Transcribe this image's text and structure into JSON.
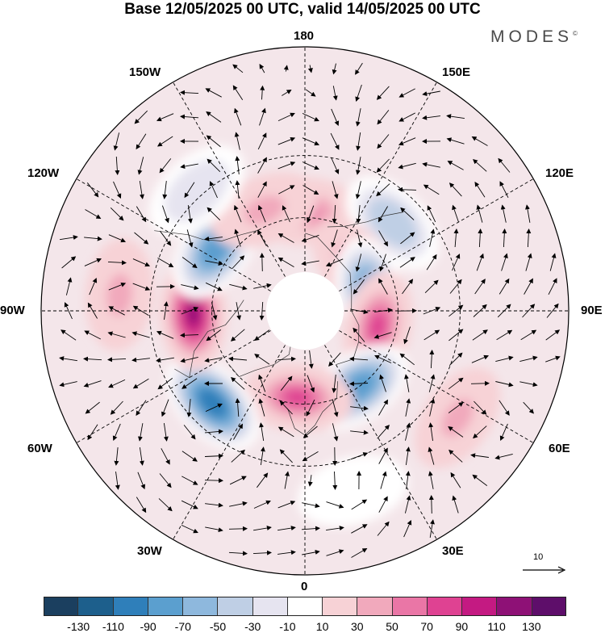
{
  "title": "Base 12/05/2025 00 UTC, valid 14/05/2025 00 UTC",
  "brand": "MODES",
  "brand_mark": "©",
  "longitude_labels": {
    "lon_180": "180",
    "lon_150w": "150W",
    "lon_150e": "150E",
    "lon_120w": "120W",
    "lon_120e": "120E",
    "lon_90w": "90W",
    "lon_90e": "90E",
    "lon_60w": "60W",
    "lon_60e": "60E",
    "lon_30w": "30W",
    "lon_30e": "30E",
    "lon_0": "0"
  },
  "reference_vector": "10",
  "colorbar": {
    "colors": [
      "#1b3f5f",
      "#1d5f8c",
      "#2f7fba",
      "#5b9fcf",
      "#8eb8dd",
      "#bfcfe5",
      "#e6e4f0",
      "#ffffff",
      "#f7d2d6",
      "#f1a9bc",
      "#ea76a6",
      "#df4292",
      "#c41a82",
      "#8e1176",
      "#5e0e6a"
    ],
    "tick_labels": [
      "-130",
      "-110",
      "-90",
      "-70",
      "-50",
      "-30",
      "-10",
      "10",
      "30",
      "50",
      "70",
      "90",
      "110",
      "130"
    ]
  },
  "anomaly_centers": [
    {
      "sign": "positive",
      "level": 50,
      "lon": 180,
      "lat": 58
    },
    {
      "sign": "negative",
      "level": -50,
      "lon": 135,
      "lat": 50
    },
    {
      "sign": "positive",
      "level": 50,
      "lon": 130,
      "lat": 68
    },
    {
      "sign": "negative",
      "level": -90,
      "lon": 105,
      "lat": 68
    },
    {
      "sign": "positive",
      "level": 70,
      "lon": 78,
      "lat": 66
    },
    {
      "sign": "negative",
      "level": -90,
      "lon": 35,
      "lat": 60
    },
    {
      "sign": "positive",
      "level": 70,
      "lon": -5,
      "lat": 62
    },
    {
      "sign": "negative",
      "level": -110,
      "lon": -45,
      "lat": 48
    },
    {
      "sign": "positive",
      "level": 110,
      "lon": -88,
      "lat": 54
    },
    {
      "sign": "negative",
      "level": -90,
      "lon": -125,
      "lat": 55
    },
    {
      "sign": "positive",
      "level": 30,
      "lon": -158,
      "lat": 55
    },
    {
      "sign": "negative",
      "level": -30,
      "lon": -138,
      "lat": 38
    },
    {
      "sign": "positive",
      "level": 30,
      "lon": 55,
      "lat": 30
    },
    {
      "sign": "positive",
      "level": 30,
      "lon": -95,
      "lat": 30
    },
    {
      "sign": "negative",
      "level": -10,
      "lon": 15,
      "lat": 30
    }
  ]
}
